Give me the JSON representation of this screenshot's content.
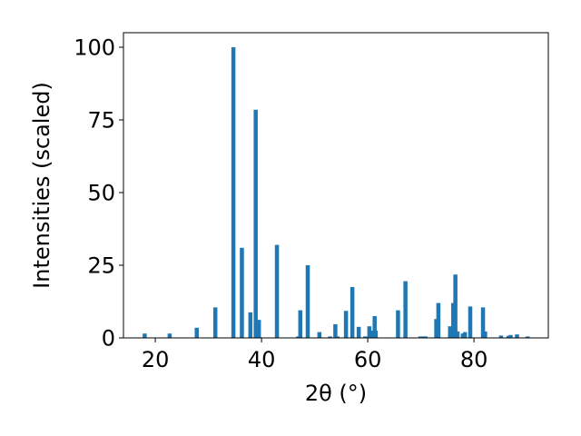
{
  "chart_data": {
    "type": "bar",
    "xlabel": "2θ (°)",
    "ylabel": "Intensities (scaled)",
    "xlim": [
      14,
      94
    ],
    "ylim": [
      0,
      105
    ],
    "xticks": [
      20,
      40,
      60,
      80
    ],
    "yticks": [
      0,
      25,
      50,
      75,
      100
    ],
    "grid": false,
    "bar_color": "#1f77b4",
    "x": [
      18.0,
      22.7,
      27.8,
      31.3,
      34.7,
      36.3,
      37.9,
      38.9,
      39.5,
      42.9,
      46.9,
      47.3,
      48.7,
      50.9,
      52.9,
      53.9,
      54.3,
      55.9,
      57.1,
      58.3,
      59.5,
      60.3,
      60.9,
      61.3,
      61.5,
      65.7,
      67.1,
      69.9,
      70.5,
      70.9,
      72.9,
      73.3,
      75.5,
      76.1,
      76.5,
      76.9,
      77.9,
      78.3,
      79.3,
      81.7,
      82.1,
      85.1,
      86.5,
      86.9,
      88.1,
      90.1
    ],
    "values": [
      1.5,
      1.5,
      3.5,
      10.5,
      100,
      31,
      8.8,
      78.5,
      6.2,
      32,
      0.5,
      9.5,
      25,
      2,
      0.5,
      4.7,
      0.5,
      9.3,
      17.5,
      3.8,
      0.5,
      4,
      2.5,
      7.5,
      2.5,
      9.5,
      19.5,
      0.5,
      0.5,
      0.5,
      6.5,
      12,
      4,
      12,
      21.8,
      2.2,
      1.5,
      2,
      10.8,
      10.5,
      2.2,
      0.8,
      0.7,
      1,
      1.2,
      0.5
    ]
  }
}
